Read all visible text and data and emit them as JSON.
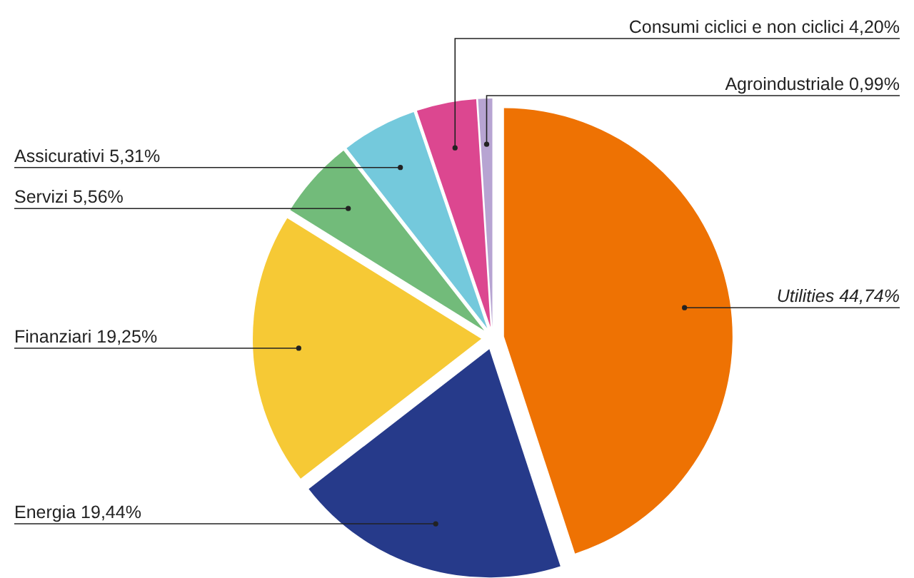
{
  "chart_data": {
    "type": "pie",
    "categories": [
      "Utilities",
      "Energia",
      "Finanziari",
      "Servizi",
      "Assicurativi",
      "Consumi ciclici e non ciclici",
      "Agroindustriale"
    ],
    "values": [
      44.74,
      19.44,
      19.25,
      5.56,
      5.31,
      4.2,
      0.99
    ],
    "value_labels": [
      "44,74%",
      "19,44%",
      "19,25%",
      "5,56%",
      "5,31%",
      "4,20%",
      "0,99%"
    ],
    "colors": [
      "#ee7203",
      "#263a8a",
      "#f6c935",
      "#72bb7a",
      "#74c9dc",
      "#dc4790",
      "#b7a4d2"
    ],
    "legend": false
  }
}
